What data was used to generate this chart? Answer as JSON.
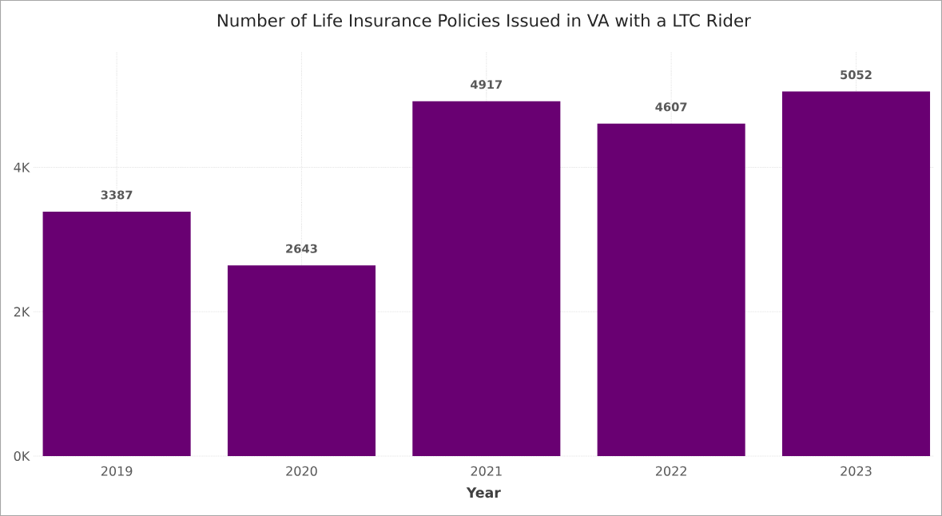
{
  "chart_data": {
    "type": "bar",
    "title": "Number of Life Insurance Policies Issued in VA with a LTC Rider",
    "xlabel": "Year",
    "categories": [
      "2019",
      "2020",
      "2021",
      "2022",
      "2023"
    ],
    "values": [
      3387,
      2643,
      4917,
      4607,
      5052
    ],
    "color": "#690072",
    "ylim": [
      0,
      5600
    ],
    "yticks": [
      {
        "value": 0,
        "label": "0K"
      },
      {
        "value": 2000,
        "label": "2K"
      },
      {
        "value": 4000,
        "label": "4K"
      }
    ],
    "grid": true,
    "data_labels": true
  }
}
